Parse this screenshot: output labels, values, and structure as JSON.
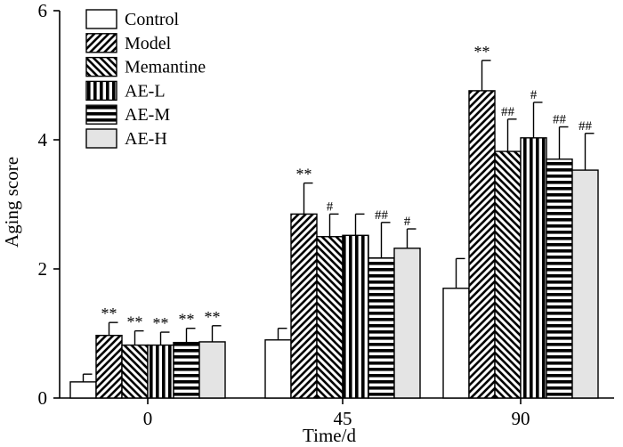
{
  "chart_data": {
    "type": "bar",
    "title": "",
    "xlabel": "Time/d",
    "ylabel": "Aging score",
    "ylim": [
      0,
      6
    ],
    "yticks": [
      "0",
      "2",
      "4",
      "6"
    ],
    "categories": [
      "0",
      "45",
      "90"
    ],
    "legend_position": "top-left",
    "series": [
      {
        "name": "Control",
        "pattern": "white",
        "values": [
          0.25,
          0.9,
          1.7
        ],
        "errors": [
          0.12,
          0.18,
          0.46
        ],
        "annotations": [
          "",
          "",
          ""
        ]
      },
      {
        "name": "Model",
        "pattern": "diag-right",
        "values": [
          0.97,
          2.85,
          4.76
        ],
        "errors": [
          0.2,
          0.48,
          0.47
        ],
        "annotations": [
          "**",
          "**",
          "**"
        ]
      },
      {
        "name": "Memantine",
        "pattern": "diag-left",
        "values": [
          0.82,
          2.5,
          3.82
        ],
        "errors": [
          0.22,
          0.35,
          0.5
        ],
        "annotations": [
          "**",
          "#",
          "##"
        ]
      },
      {
        "name": "AE-L",
        "pattern": "vertical",
        "values": [
          0.82,
          2.52,
          4.03
        ],
        "errors": [
          0.2,
          0.33,
          0.55
        ],
        "annotations": [
          "**",
          "",
          "#"
        ]
      },
      {
        "name": "AE-M",
        "pattern": "horizontal",
        "values": [
          0.86,
          2.17,
          3.7
        ],
        "errors": [
          0.22,
          0.55,
          0.5
        ],
        "annotations": [
          "**",
          "##",
          "##"
        ]
      },
      {
        "name": "AE-H",
        "pattern": "gray",
        "values": [
          0.87,
          2.32,
          3.53
        ],
        "errors": [
          0.25,
          0.3,
          0.57
        ],
        "annotations": [
          "**",
          "#",
          "##"
        ]
      }
    ]
  }
}
